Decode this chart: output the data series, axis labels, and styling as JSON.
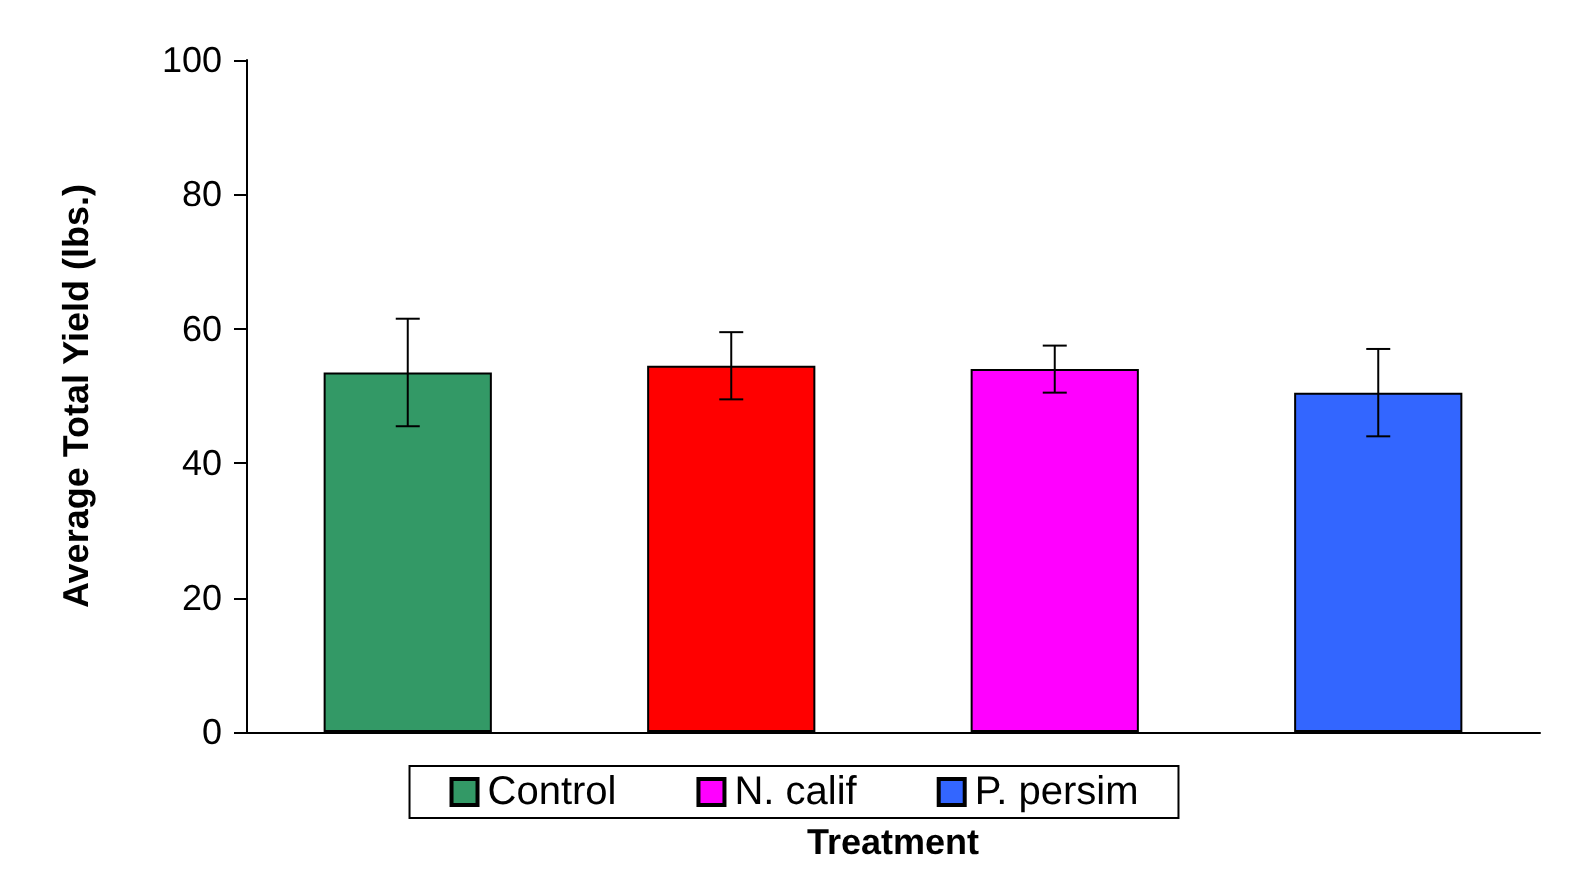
{
  "chart_data": {
    "type": "bar",
    "xlabel": "Treatment",
    "ylabel": "Average Total Yield (lbs.)",
    "categories": [
      null,
      null,
      null,
      null
    ],
    "series": [
      {
        "name": "Control",
        "color": "#339966",
        "values": [
          53.5,
          null,
          null,
          null
        ],
        "errors": [
          8,
          null,
          null,
          null
        ]
      },
      {
        "color": "#ff0000",
        "values": [
          null,
          54.5,
          null,
          null
        ],
        "errors": [
          null,
          5,
          null,
          null
        ]
      },
      {
        "name": "N. calif",
        "color": "#ff00ff",
        "values": [
          null,
          null,
          54,
          null
        ],
        "errors": [
          null,
          null,
          3.5,
          null
        ]
      },
      {
        "name": "P. persim",
        "color": "#3366ff",
        "values": [
          null,
          null,
          null,
          50.5
        ],
        "errors": [
          null,
          null,
          null,
          6.5
        ]
      }
    ],
    "ylim": [
      0,
      100
    ],
    "yticks": [
      0,
      20,
      40,
      60,
      80,
      100
    ],
    "grid": false,
    "legend": "bottom"
  }
}
